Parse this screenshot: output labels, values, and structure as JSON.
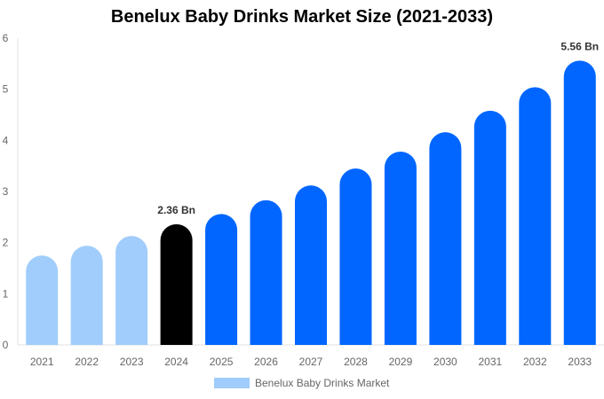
{
  "chart_data": {
    "type": "bar",
    "title": "Benelux Baby Drinks Market Size (2021-2033)",
    "categories": [
      "2021",
      "2022",
      "2023",
      "2024",
      "2025",
      "2026",
      "2027",
      "2028",
      "2029",
      "2030",
      "2031",
      "2032",
      "2033"
    ],
    "series": [
      {
        "name": "Benelux Baby Drinks Market",
        "values": [
          1.75,
          1.94,
          2.13,
          2.36,
          2.56,
          2.83,
          3.12,
          3.45,
          3.78,
          4.16,
          4.58,
          5.04,
          5.56
        ]
      }
    ],
    "data_labels": {
      "2024": "2.36 Bn",
      "2033": "5.56 Bn"
    },
    "ylim": [
      0,
      6
    ],
    "yticks": [
      0,
      1,
      2,
      3,
      4,
      5,
      6
    ],
    "grid": false,
    "legend": "bottom",
    "colors": {
      "historical": "#a0cdfb",
      "base_year": "#000000",
      "forecast": "#0066ff"
    }
  }
}
